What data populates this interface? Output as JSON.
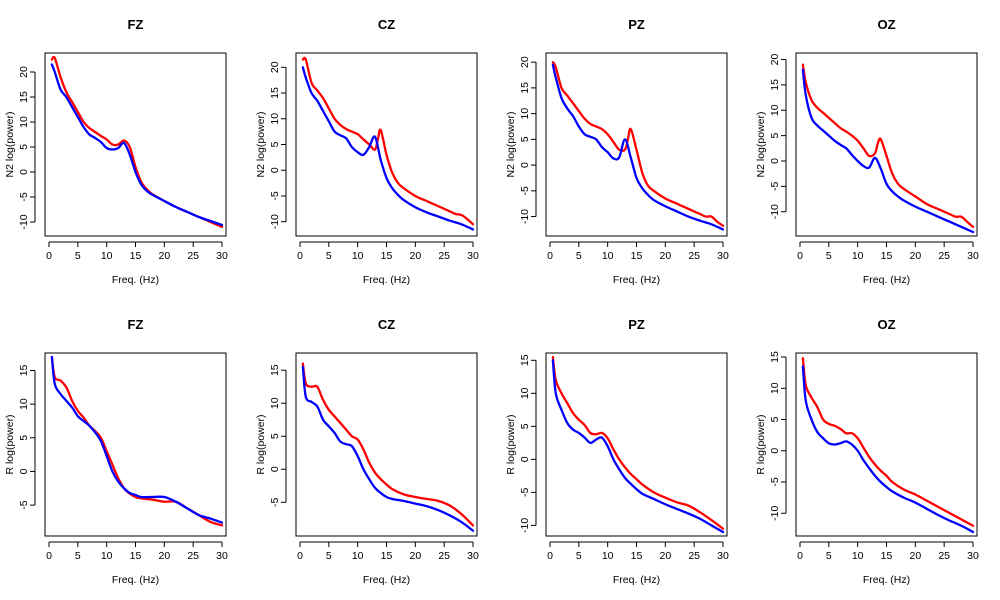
{
  "chart_data": [
    {
      "type": "line",
      "title": "FZ",
      "xlabel": "Freq. (Hz)",
      "ylabel": "N2 log(power)",
      "xlim": [
        0,
        30
      ],
      "ylim": [
        -12,
        23
      ],
      "xticks": [
        0,
        5,
        10,
        15,
        20,
        25,
        30
      ],
      "yticks": [
        -10,
        -5,
        0,
        5,
        10,
        15,
        20
      ],
      "series": [
        {
          "name": "red",
          "color": "#ff0000",
          "x": [
            0.5,
            1,
            2,
            3,
            4,
            5,
            6,
            7,
            8,
            9,
            10,
            11,
            12,
            13,
            14,
            15,
            16,
            17,
            18,
            20,
            22,
            24,
            26,
            28,
            30
          ],
          "y": [
            22.5,
            22.8,
            19,
            16,
            14,
            12,
            10,
            8.8,
            8,
            7.2,
            6.5,
            5.5,
            5.5,
            6.3,
            5,
            1,
            -2,
            -3.5,
            -4.5,
            -5.8,
            -7,
            -8,
            -9,
            -10,
            -11
          ]
        },
        {
          "name": "blue",
          "color": "#0000ff",
          "x": [
            0.5,
            1,
            2,
            3,
            4,
            5,
            6,
            7,
            8,
            9,
            10,
            11,
            12,
            13,
            14,
            15,
            16,
            17,
            18,
            20,
            22,
            24,
            26,
            28,
            30
          ],
          "y": [
            21.5,
            20,
            16.5,
            15,
            13,
            11,
            9,
            7.5,
            6.8,
            6,
            4.8,
            4.5,
            4.8,
            5.8,
            3.5,
            0,
            -2.5,
            -3.8,
            -4.6,
            -5.8,
            -7,
            -8,
            -9,
            -9.8,
            -10.6
          ]
        }
      ]
    },
    {
      "type": "line",
      "title": "CZ",
      "xlabel": "Freq. (Hz)",
      "ylabel": "N2 log(power)",
      "xlim": [
        0,
        30
      ],
      "ylim": [
        -12,
        22
      ],
      "xticks": [
        0,
        5,
        10,
        15,
        20,
        25,
        30
      ],
      "yticks": [
        -10,
        -5,
        0,
        5,
        10,
        15,
        20
      ],
      "series": [
        {
          "name": "red",
          "color": "#ff0000",
          "x": [
            0.5,
            1,
            2,
            3,
            4,
            5,
            6,
            7,
            8,
            9,
            10,
            11,
            12,
            13,
            13.5,
            14,
            15,
            16,
            17,
            18,
            20,
            22,
            24,
            26,
            27,
            28,
            29,
            30
          ],
          "y": [
            21.5,
            21.5,
            17,
            15.5,
            14,
            12,
            10,
            8.8,
            8,
            7.5,
            7,
            6,
            5,
            4,
            6,
            7.8,
            3,
            -0.5,
            -2.5,
            -3.5,
            -5,
            -6,
            -7,
            -8,
            -8.5,
            -8.7,
            -9.5,
            -10.5
          ]
        },
        {
          "name": "blue",
          "color": "#0000ff",
          "x": [
            0.5,
            1,
            2,
            3,
            4,
            5,
            6,
            7,
            8,
            9,
            10,
            11,
            12,
            13,
            14,
            15,
            16,
            17,
            18,
            20,
            22,
            24,
            26,
            28,
            30
          ],
          "y": [
            20,
            18,
            15,
            13.5,
            11.5,
            9.5,
            7.5,
            6.8,
            6.2,
            4.5,
            3.5,
            3,
            4.5,
            6.5,
            2,
            -1.5,
            -3.5,
            -4.8,
            -5.8,
            -7.2,
            -8.2,
            -9,
            -9.8,
            -10.5,
            -11.5
          ]
        }
      ]
    },
    {
      "type": "line",
      "title": "PZ",
      "xlabel": "Freq. (Hz)",
      "ylabel": "N2 log(power)",
      "xlim": [
        0,
        30
      ],
      "ylim": [
        -13,
        21
      ],
      "xticks": [
        0,
        5,
        10,
        15,
        20,
        25,
        30
      ],
      "yticks": [
        -10,
        -5,
        0,
        5,
        10,
        15,
        20
      ],
      "series": [
        {
          "name": "red",
          "color": "#ff0000",
          "x": [
            0.5,
            1,
            2,
            3,
            4,
            5,
            6,
            7,
            8,
            9,
            10,
            11,
            12,
            13,
            13.5,
            14,
            15,
            16,
            17,
            18,
            20,
            22,
            24,
            26,
            27,
            28,
            29,
            30
          ],
          "y": [
            20,
            19,
            15,
            13.5,
            12,
            10.5,
            9,
            8,
            7.5,
            7,
            6,
            4.5,
            3,
            3,
            5,
            7,
            3,
            -1.5,
            -4,
            -5,
            -6.5,
            -7.5,
            -8.5,
            -9.5,
            -10,
            -10,
            -11,
            -11.8
          ]
        },
        {
          "name": "blue",
          "color": "#0000ff",
          "x": [
            0.5,
            1,
            2,
            3,
            4,
            5,
            6,
            7,
            8,
            9,
            10,
            11,
            12,
            13,
            14,
            15,
            16,
            17,
            18,
            20,
            22,
            24,
            26,
            28,
            30
          ],
          "y": [
            19.5,
            17,
            13,
            11,
            9.5,
            7.5,
            6,
            5.5,
            5,
            3.5,
            2.5,
            1.3,
            1.5,
            5,
            1.5,
            -2.5,
            -4.5,
            -5.8,
            -6.8,
            -8,
            -9,
            -10,
            -10.8,
            -11.5,
            -12.5
          ]
        }
      ]
    },
    {
      "type": "line",
      "title": "OZ",
      "xlabel": "Freq. (Hz)",
      "ylabel": "N2 log(power)",
      "xlim": [
        0,
        30
      ],
      "ylim": [
        -14,
        20.5
      ],
      "xticks": [
        0,
        5,
        10,
        15,
        20,
        25,
        30
      ],
      "yticks": [
        -10,
        -5,
        0,
        5,
        10,
        15,
        20
      ],
      "series": [
        {
          "name": "red",
          "color": "#ff0000",
          "x": [
            0.5,
            1,
            2,
            3,
            4,
            5,
            6,
            7,
            8,
            9,
            10,
            11,
            12,
            13,
            13.5,
            14,
            15,
            16,
            17,
            18,
            20,
            22,
            24,
            26,
            27,
            28,
            29,
            30
          ],
          "y": [
            19,
            15.5,
            12,
            10.5,
            9.5,
            8.5,
            7.5,
            6.5,
            5.8,
            5,
            4,
            2.5,
            1,
            1.5,
            3.5,
            4.3,
            1,
            -2.5,
            -4.5,
            -5.5,
            -7,
            -8.5,
            -9.5,
            -10.5,
            -11,
            -11,
            -12,
            -13
          ]
        },
        {
          "name": "blue",
          "color": "#0000ff",
          "x": [
            0.5,
            1,
            2,
            3,
            4,
            5,
            6,
            7,
            8,
            9,
            10,
            11,
            12,
            13,
            14,
            15,
            16,
            17,
            18,
            20,
            22,
            24,
            26,
            28,
            30
          ],
          "y": [
            18,
            13,
            8.5,
            7,
            6,
            5,
            4,
            3.2,
            2.5,
            1.2,
            0,
            -1,
            -1.3,
            0.6,
            -1.5,
            -4.5,
            -6,
            -7,
            -7.8,
            -9,
            -10,
            -11,
            -12,
            -13,
            -14
          ]
        }
      ]
    },
    {
      "type": "line",
      "title": "FZ",
      "xlabel": "Freq. (Hz)",
      "ylabel": "R log(power)",
      "xlim": [
        0,
        30
      ],
      "ylim": [
        -9,
        17
      ],
      "xticks": [
        0,
        5,
        10,
        15,
        20,
        25,
        30
      ],
      "yticks": [
        -5,
        0,
        5,
        10,
        15
      ],
      "series": [
        {
          "name": "red",
          "color": "#ff0000",
          "x": [
            0.5,
            1,
            2,
            3,
            4,
            5,
            6,
            7,
            8,
            9,
            10,
            11,
            12,
            13,
            14,
            15,
            16,
            18,
            20,
            22,
            24,
            26,
            28,
            30
          ],
          "y": [
            17,
            14,
            13.5,
            12.5,
            10.5,
            9,
            8,
            6.8,
            6,
            5,
            3,
            1,
            -1,
            -2.5,
            -3.3,
            -3.8,
            -4,
            -4.2,
            -4.5,
            -4.5,
            -5.5,
            -6.5,
            -7.5,
            -8
          ]
        },
        {
          "name": "blue",
          "color": "#0000ff",
          "x": [
            0.5,
            1,
            2,
            3,
            4,
            5,
            6,
            7,
            8,
            9,
            10,
            11,
            12,
            13,
            14,
            15,
            16,
            18,
            20,
            22,
            24,
            26,
            28,
            30
          ],
          "y": [
            17,
            13,
            11.5,
            10.5,
            9.5,
            8.2,
            7.5,
            6.8,
            5.8,
            4.5,
            2.3,
            0,
            -1.5,
            -2.5,
            -3.2,
            -3.5,
            -3.8,
            -3.8,
            -3.8,
            -4.5,
            -5.5,
            -6.5,
            -7,
            -7.6
          ]
        }
      ]
    },
    {
      "type": "line",
      "title": "CZ",
      "xlabel": "Freq. (Hz)",
      "ylabel": "R log(power)",
      "xlim": [
        0,
        30
      ],
      "ylim": [
        -9.5,
        17
      ],
      "xticks": [
        0,
        5,
        10,
        15,
        20,
        25,
        30
      ],
      "yticks": [
        -5,
        0,
        5,
        10,
        15
      ],
      "series": [
        {
          "name": "red",
          "color": "#ff0000",
          "x": [
            0.5,
            1,
            2,
            3,
            4,
            5,
            6,
            7,
            8,
            9,
            10,
            11,
            12,
            13,
            14,
            15,
            16,
            18,
            20,
            22,
            24,
            26,
            28,
            30
          ],
          "y": [
            16,
            13,
            12.5,
            12.5,
            10.5,
            9,
            8,
            7,
            6,
            5,
            4.5,
            3,
            1,
            -0.5,
            -1.5,
            -2.3,
            -3,
            -3.8,
            -4.2,
            -4.5,
            -4.8,
            -5.5,
            -6.8,
            -8.5
          ]
        },
        {
          "name": "blue",
          "color": "#0000ff",
          "x": [
            0.5,
            1,
            2,
            3,
            4,
            5,
            6,
            7,
            8,
            9,
            10,
            11,
            12,
            13,
            14,
            15,
            16,
            18,
            20,
            22,
            24,
            26,
            28,
            30
          ],
          "y": [
            15.5,
            11,
            10.2,
            9.5,
            7.5,
            6.5,
            5.5,
            4.2,
            3.8,
            3.5,
            2,
            0,
            -1.5,
            -2.8,
            -3.6,
            -4.2,
            -4.5,
            -4.8,
            -5.2,
            -5.6,
            -6.2,
            -7,
            -8,
            -9.3
          ]
        }
      ]
    },
    {
      "type": "line",
      "title": "PZ",
      "xlabel": "Freq. (Hz)",
      "ylabel": "R log(power)",
      "xlim": [
        0,
        30
      ],
      "ylim": [
        -11,
        15.5
      ],
      "xticks": [
        0,
        5,
        10,
        15,
        20,
        25,
        30
      ],
      "yticks": [
        -10,
        -5,
        0,
        5,
        10,
        15
      ],
      "series": [
        {
          "name": "red",
          "color": "#ff0000",
          "x": [
            0.5,
            1,
            2,
            3,
            4,
            5,
            6,
            7,
            8,
            9,
            10,
            11,
            12,
            13,
            14,
            15,
            16,
            18,
            20,
            22,
            24,
            26,
            28,
            30
          ],
          "y": [
            15.5,
            12,
            10,
            8.5,
            7,
            6,
            5.2,
            4,
            3.8,
            4,
            3.2,
            1.5,
            0,
            -1.2,
            -2.2,
            -3,
            -3.8,
            -5,
            -5.8,
            -6.5,
            -7,
            -8,
            -9.2,
            -10.5
          ]
        },
        {
          "name": "blue",
          "color": "#0000ff",
          "x": [
            0.5,
            1,
            2,
            3,
            4,
            5,
            6,
            7,
            8,
            9,
            10,
            11,
            12,
            13,
            14,
            15,
            16,
            18,
            20,
            22,
            24,
            26,
            28,
            30
          ],
          "y": [
            15,
            10,
            7.5,
            5.5,
            4.5,
            4,
            3.3,
            2.5,
            3,
            3.3,
            2,
            0,
            -1.5,
            -2.8,
            -3.7,
            -4.5,
            -5.2,
            -6,
            -6.8,
            -7.5,
            -8.2,
            -9,
            -10,
            -11
          ]
        }
      ]
    },
    {
      "type": "line",
      "title": "OZ",
      "xlabel": "Freq. (Hz)",
      "ylabel": "R log(power)",
      "xlim": [
        0,
        30
      ],
      "ylim": [
        -13,
        15
      ],
      "xticks": [
        0,
        5,
        10,
        15,
        20,
        25,
        30
      ],
      "yticks": [
        -10,
        -5,
        0,
        5,
        10,
        15
      ],
      "series": [
        {
          "name": "red",
          "color": "#ff0000",
          "x": [
            0.5,
            1,
            2,
            3,
            4,
            5,
            6,
            7,
            8,
            9,
            10,
            11,
            12,
            13,
            14,
            15,
            16,
            18,
            20,
            22,
            24,
            26,
            28,
            30
          ],
          "y": [
            14.8,
            10.5,
            8.5,
            7,
            5,
            4.3,
            4,
            3.5,
            2.8,
            2.8,
            2,
            0.5,
            -1,
            -2.2,
            -3.2,
            -4,
            -5,
            -6.2,
            -7,
            -8,
            -9,
            -10,
            -11,
            -12
          ]
        },
        {
          "name": "blue",
          "color": "#0000ff",
          "x": [
            0.5,
            1,
            2,
            3,
            4,
            5,
            6,
            7,
            8,
            9,
            10,
            11,
            12,
            13,
            14,
            15,
            16,
            18,
            20,
            22,
            24,
            26,
            28,
            30
          ],
          "y": [
            13.5,
            8,
            5,
            3,
            2,
            1.2,
            1,
            1.2,
            1.5,
            1,
            0,
            -1.5,
            -2.8,
            -4,
            -5,
            -5.8,
            -6.5,
            -7.5,
            -8.3,
            -9.3,
            -10.3,
            -11.2,
            -12,
            -13
          ]
        }
      ]
    }
  ]
}
